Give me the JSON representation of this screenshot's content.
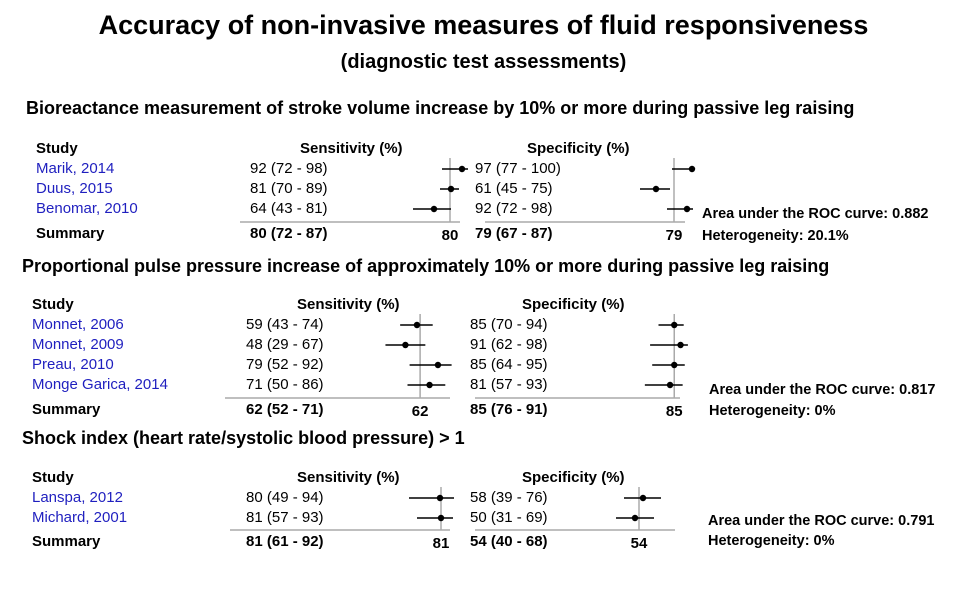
{
  "main_title": "Accuracy of non-invasive measures of fluid responsiveness",
  "sub_title": "(diagnostic test assessments)",
  "columns": {
    "study": "Study",
    "sensitivity": "Sensitivity (%)",
    "specificity": "Specificity (%)"
  },
  "chart_data": [
    {
      "type": "forest",
      "title": "Bioreactance measurement of stroke volume increase by 10% or more during passive leg raising",
      "studies": [
        {
          "name": "Marik, 2014",
          "sens": 92,
          "sens_ci": [
            72,
            98
          ],
          "sens_text": "92 (72 - 98)",
          "spec": 97,
          "spec_ci": [
            77,
            100
          ],
          "spec_text": "97 (77 - 100)"
        },
        {
          "name": "Duus, 2015",
          "sens": 81,
          "sens_ci": [
            70,
            89
          ],
          "sens_text": "81 (70 - 89)",
          "spec": 61,
          "spec_ci": [
            45,
            75
          ],
          "spec_text": "61 (45 - 75)"
        },
        {
          "name": "Benomar, 2010",
          "sens": 64,
          "sens_ci": [
            43,
            81
          ],
          "sens_text": "64 (43 - 81)",
          "spec": 92,
          "spec_ci": [
            72,
            98
          ],
          "spec_text": "92 (72 - 98)"
        }
      ],
      "summary": {
        "label": "Summary",
        "sens": 80,
        "sens_text": "80 (72 - 87)",
        "sens_value_label": "80",
        "spec": 79,
        "spec_text": "79 (67 - 87)",
        "spec_value_label": "79"
      },
      "auc_text": "Area under the ROC curve: 0.882",
      "heterogeneity_text": "Heterogeneity: 20.1%"
    },
    {
      "type": "forest",
      "title": "Proportional pulse pressure increase of approximately 10% or more during passive leg raising",
      "studies": [
        {
          "name": "Monnet, 2006",
          "sens": 59,
          "sens_ci": [
            43,
            74
          ],
          "sens_text": "59 (43 - 74)",
          "spec": 85,
          "spec_ci": [
            70,
            94
          ],
          "spec_text": "85 (70 - 94)"
        },
        {
          "name": "Monnet, 2009",
          "sens": 48,
          "sens_ci": [
            29,
            67
          ],
          "sens_text": "48 (29 - 67)",
          "spec": 91,
          "spec_ci": [
            62,
            98
          ],
          "spec_text": "91 (62 - 98)"
        },
        {
          "name": "Preau, 2010",
          "sens": 79,
          "sens_ci": [
            52,
            92
          ],
          "sens_text": "79 (52 - 92)",
          "spec": 85,
          "spec_ci": [
            64,
            95
          ],
          "spec_text": "85 (64 - 95)"
        },
        {
          "name": "Monge Garica, 2014",
          "sens": 71,
          "sens_ci": [
            50,
            86
          ],
          "sens_text": "71 (50 - 86)",
          "spec": 81,
          "spec_ci": [
            57,
            93
          ],
          "spec_text": "81 (57 - 93)"
        }
      ],
      "summary": {
        "label": "Summary",
        "sens": 62,
        "sens_text": "62 (52 - 71)",
        "sens_value_label": "62",
        "spec": 85,
        "spec_text": "85 (76 - 91)",
        "spec_value_label": "85"
      },
      "auc_text": "Area under the ROC curve: 0.817",
      "heterogeneity_text": "Heterogeneity: 0%"
    },
    {
      "type": "forest",
      "title": "Shock index (heart rate/systolic blood pressure) > 1",
      "studies": [
        {
          "name": "Lanspa, 2012",
          "sens": 80,
          "sens_ci": [
            49,
            94
          ],
          "sens_text": "80 (49 - 94)",
          "spec": 58,
          "spec_ci": [
            39,
            76
          ],
          "spec_text": "58 (39 - 76)"
        },
        {
          "name": "Michard, 2001",
          "sens": 81,
          "sens_ci": [
            57,
            93
          ],
          "sens_text": "81 (57 - 93)",
          "spec": 50,
          "spec_ci": [
            31,
            69
          ],
          "spec_text": "50 (31 - 69)"
        }
      ],
      "summary": {
        "label": "Summary",
        "sens": 81,
        "sens_text": "81 (61 - 92)",
        "sens_value_label": "81",
        "spec": 54,
        "spec_text": "54 (40 - 68)",
        "spec_value_label": "54"
      },
      "auc_text": "Area under the ROC curve: 0.791",
      "heterogeneity_text": "Heterogeneity: 0%"
    }
  ]
}
